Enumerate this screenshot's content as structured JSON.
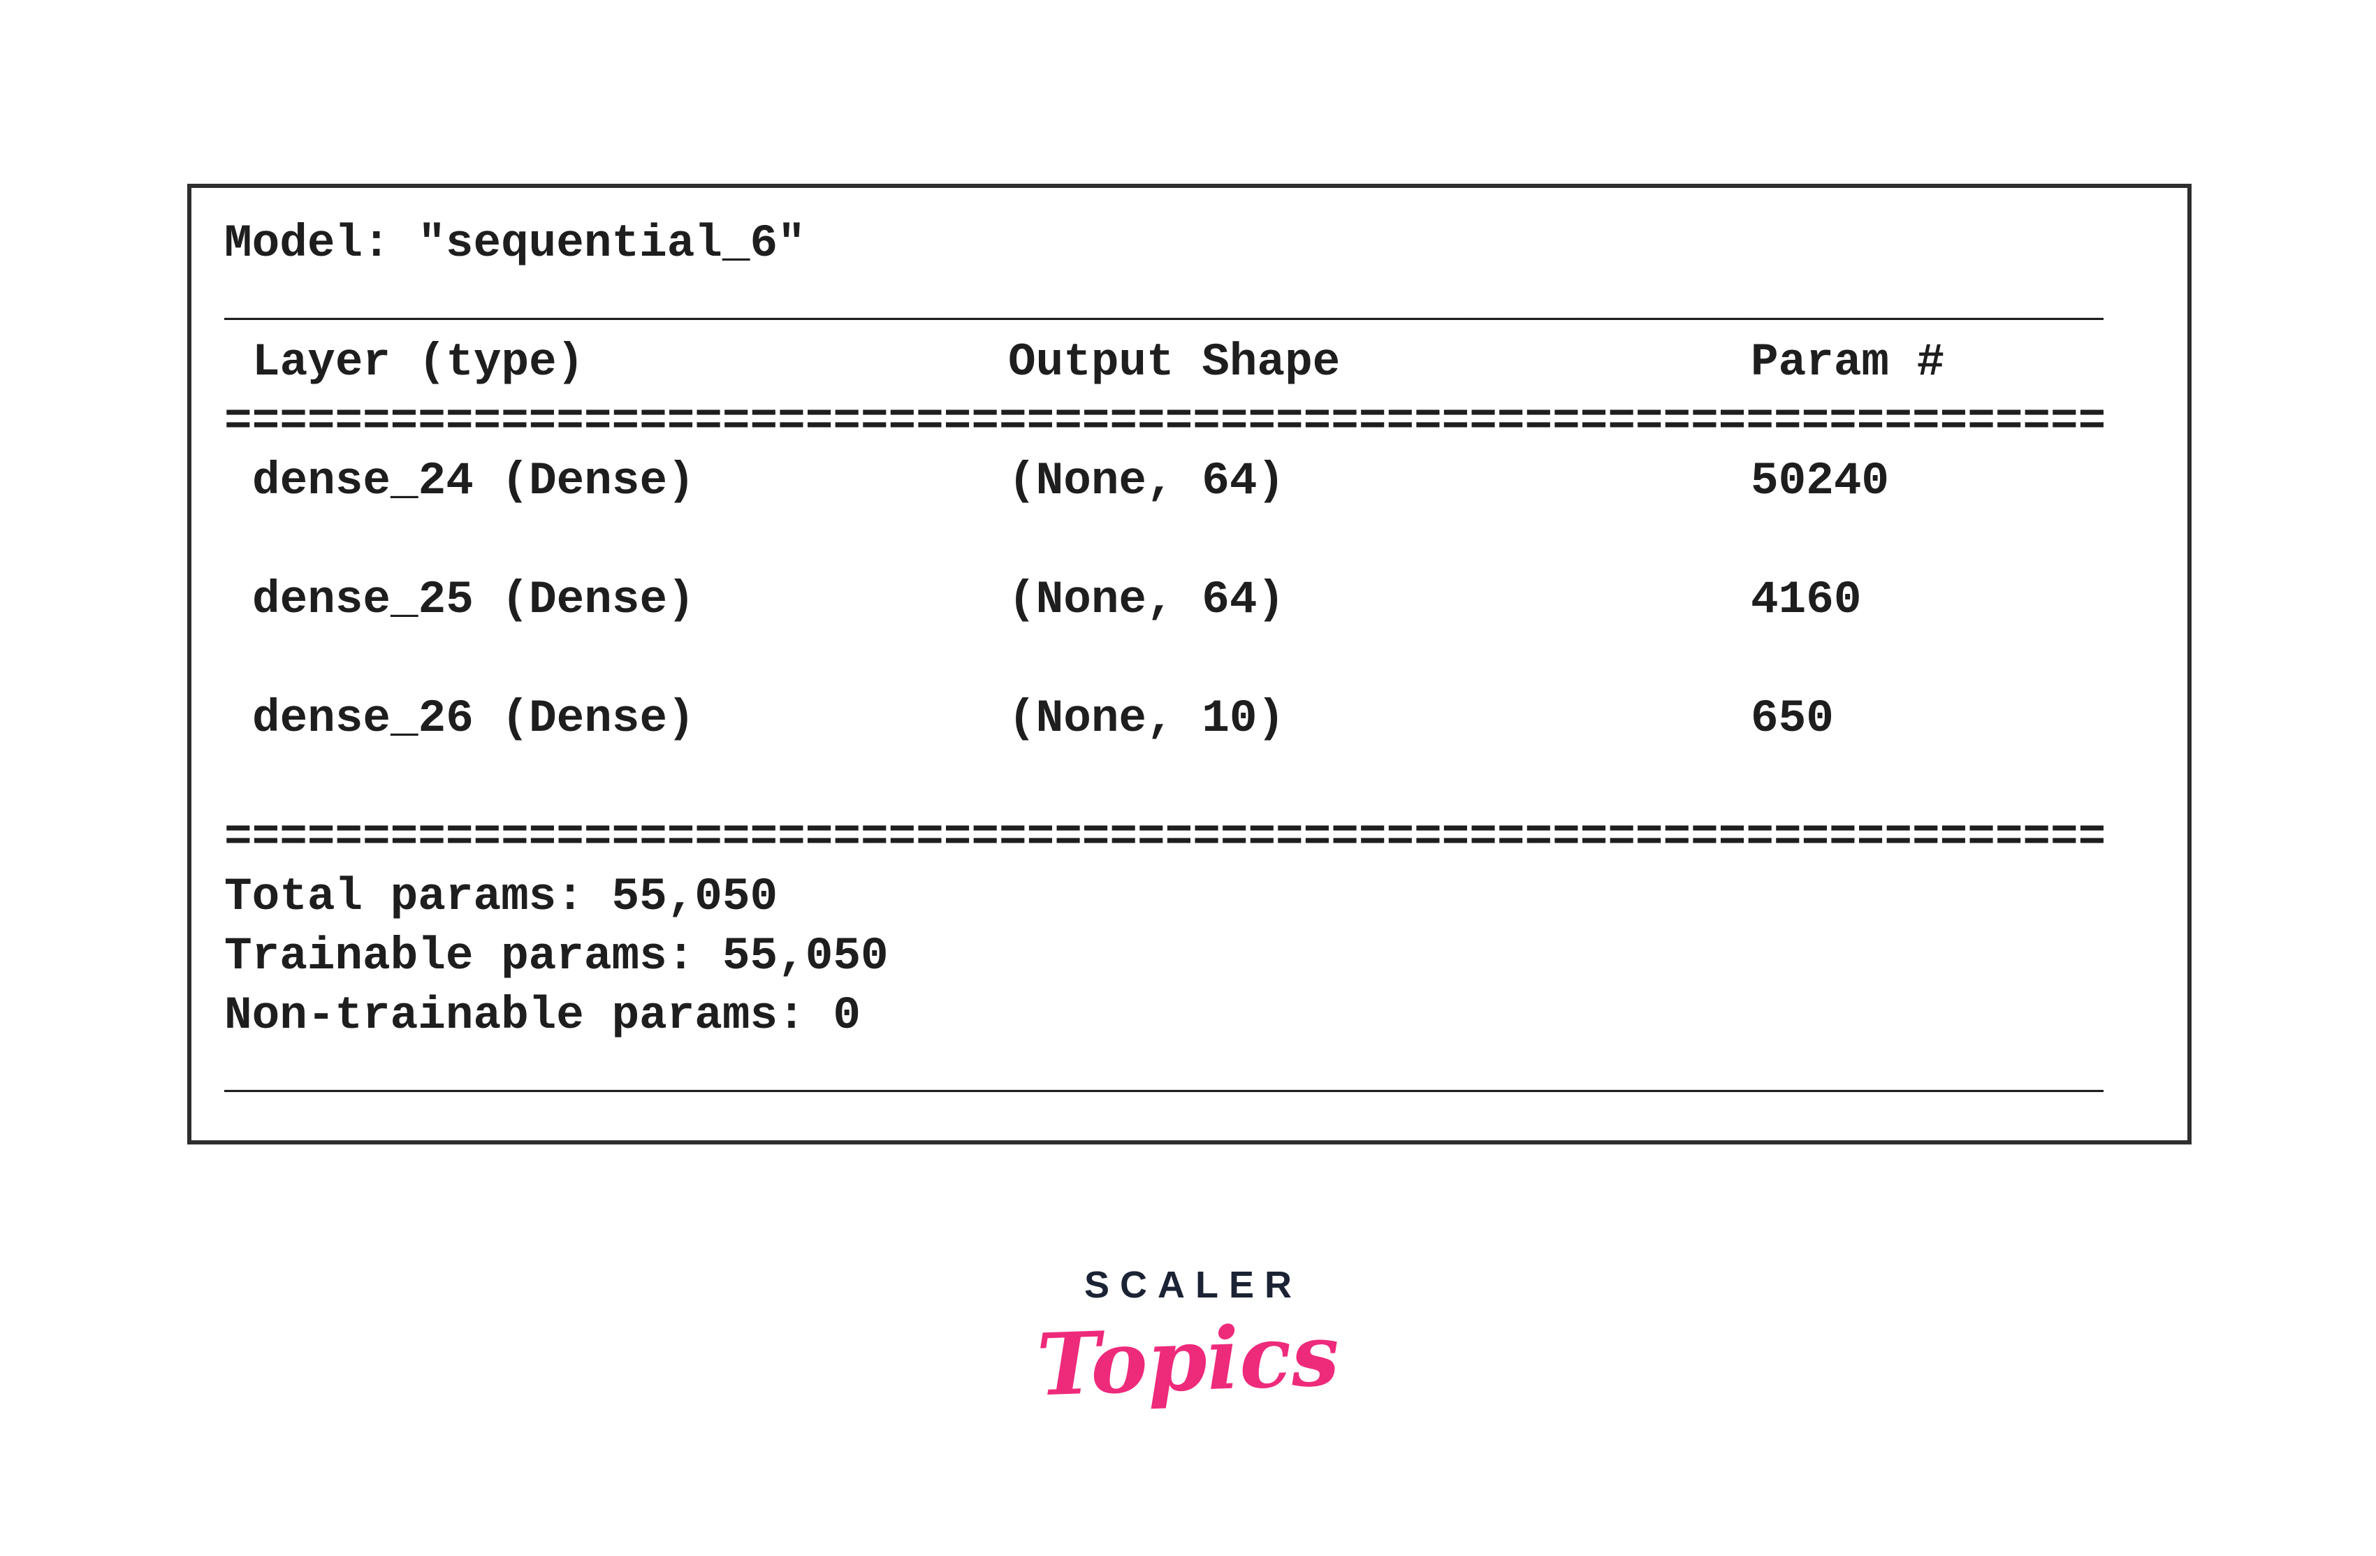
{
  "summary": {
    "model_line": "Model: \"sequential_6\"",
    "divider_thin": "____________________________________________________________________",
    "divider_double": "====================================================================",
    "table": {
      "headers": {
        "layer": "Layer (type)",
        "output_shape": "Output Shape",
        "params": "Param #"
      },
      "rows": [
        {
          "layer": "dense_24 (Dense)",
          "output_shape": "(None, 64)",
          "params": "50240"
        },
        {
          "layer": "dense_25 (Dense)",
          "output_shape": "(None, 64)",
          "params": "4160"
        },
        {
          "layer": "dense_26 (Dense)",
          "output_shape": "(None, 10)",
          "params": "650"
        }
      ]
    },
    "totals": {
      "total_params": "Total params: 55,050",
      "trainable_params": "Trainable params: 55,050",
      "non_trainable_params": "Non-trainable params: 0"
    },
    "text_color": "#1e1e1e",
    "border_color": "#2e2e2e"
  },
  "logo": {
    "brand": "SCALER",
    "sub": "Topics",
    "brand_color": "#1b2334",
    "accent_color": "#ee2a7b"
  }
}
